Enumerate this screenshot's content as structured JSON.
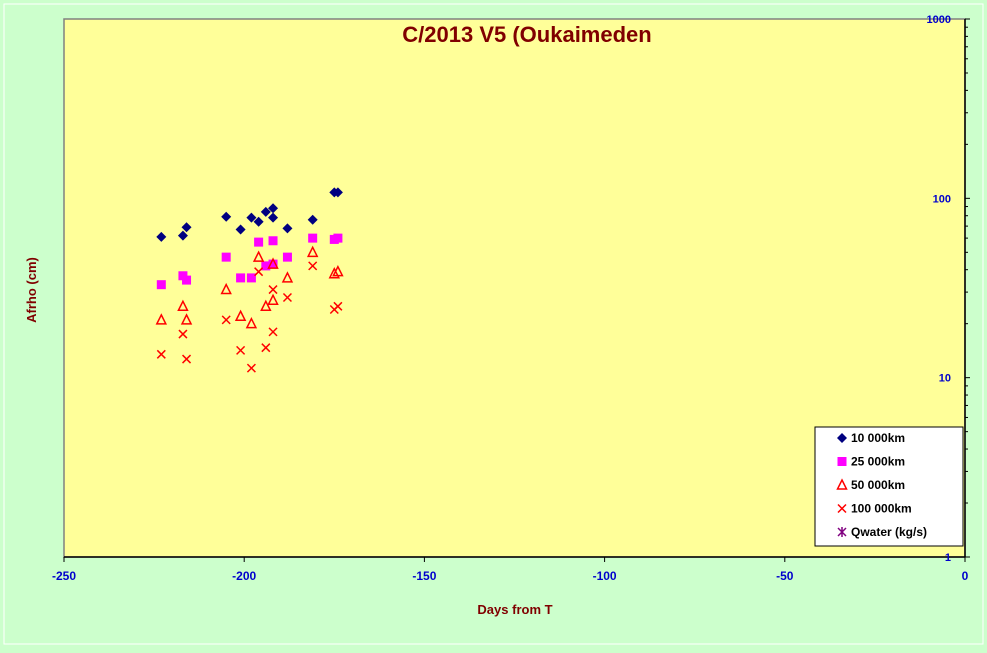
{
  "chart_data": {
    "type": "scatter",
    "title": "C/2013 V5 (Oukaimeden",
    "xlabel": "Days from  T",
    "ylabel": "Afrho (cm)",
    "xlim": [
      -250,
      0
    ],
    "ylim": [
      1,
      1000
    ],
    "y_scale": "log",
    "x_ticks": [
      -250,
      -200,
      -150,
      -100,
      -50,
      0
    ],
    "y_ticks": [
      1,
      10,
      100,
      1000
    ],
    "grid": false,
    "legend_position": "bottom-right",
    "colors": {
      "background": "#ccffcc",
      "plot_area": "#ffff99",
      "title": "#800000",
      "ticks": "#0000cc"
    },
    "series": [
      {
        "name": "10 000km",
        "marker": "diamond",
        "color": "#000080",
        "points": [
          [
            -223,
            61
          ],
          [
            -217,
            62
          ],
          [
            -216,
            69
          ],
          [
            -205,
            79
          ],
          [
            -201,
            67
          ],
          [
            -198,
            78
          ],
          [
            -196,
            74
          ],
          [
            -194,
            84
          ],
          [
            -192,
            88
          ],
          [
            -192,
            78
          ],
          [
            -188,
            68
          ],
          [
            -181,
            76
          ],
          [
            -175,
            108
          ],
          [
            -174,
            108
          ]
        ]
      },
      {
        "name": "25 000km",
        "marker": "square",
        "color": "#ff00ff",
        "points": [
          [
            -223,
            33
          ],
          [
            -217,
            37
          ],
          [
            -216,
            35
          ],
          [
            -205,
            47
          ],
          [
            -201,
            36
          ],
          [
            -198,
            36
          ],
          [
            -196,
            57
          ],
          [
            -194,
            42
          ],
          [
            -192,
            58
          ],
          [
            -192,
            43
          ],
          [
            -188,
            47
          ],
          [
            -181,
            60
          ],
          [
            -175,
            59
          ],
          [
            -174,
            60
          ]
        ]
      },
      {
        "name": "50 000km",
        "marker": "triangle",
        "color": "#ff0000",
        "points": [
          [
            -223,
            21
          ],
          [
            -217,
            25
          ],
          [
            -216,
            21
          ],
          [
            -205,
            31
          ],
          [
            -201,
            22
          ],
          [
            -198,
            20
          ],
          [
            -196,
            47
          ],
          [
            -194,
            25
          ],
          [
            -192,
            43
          ],
          [
            -192,
            27
          ],
          [
            -188,
            36
          ],
          [
            -181,
            50
          ],
          [
            -175,
            38
          ],
          [
            -174,
            39
          ]
        ]
      },
      {
        "name": "100 000km",
        "marker": "x",
        "color": "#ff0000",
        "points": [
          [
            -223,
            13.5
          ],
          [
            -217,
            17.5
          ],
          [
            -216,
            12.7
          ],
          [
            -205,
            21
          ],
          [
            -201,
            14.2
          ],
          [
            -198,
            11.3
          ],
          [
            -196,
            39
          ],
          [
            -194,
            14.7
          ],
          [
            -192,
            31
          ],
          [
            -192,
            18
          ],
          [
            -188,
            28
          ],
          [
            -181,
            42
          ],
          [
            -175,
            24
          ],
          [
            -174,
            25
          ]
        ]
      },
      {
        "name": "Qwater (kg/s)",
        "marker": "star",
        "color": "#800080",
        "points": []
      }
    ]
  }
}
